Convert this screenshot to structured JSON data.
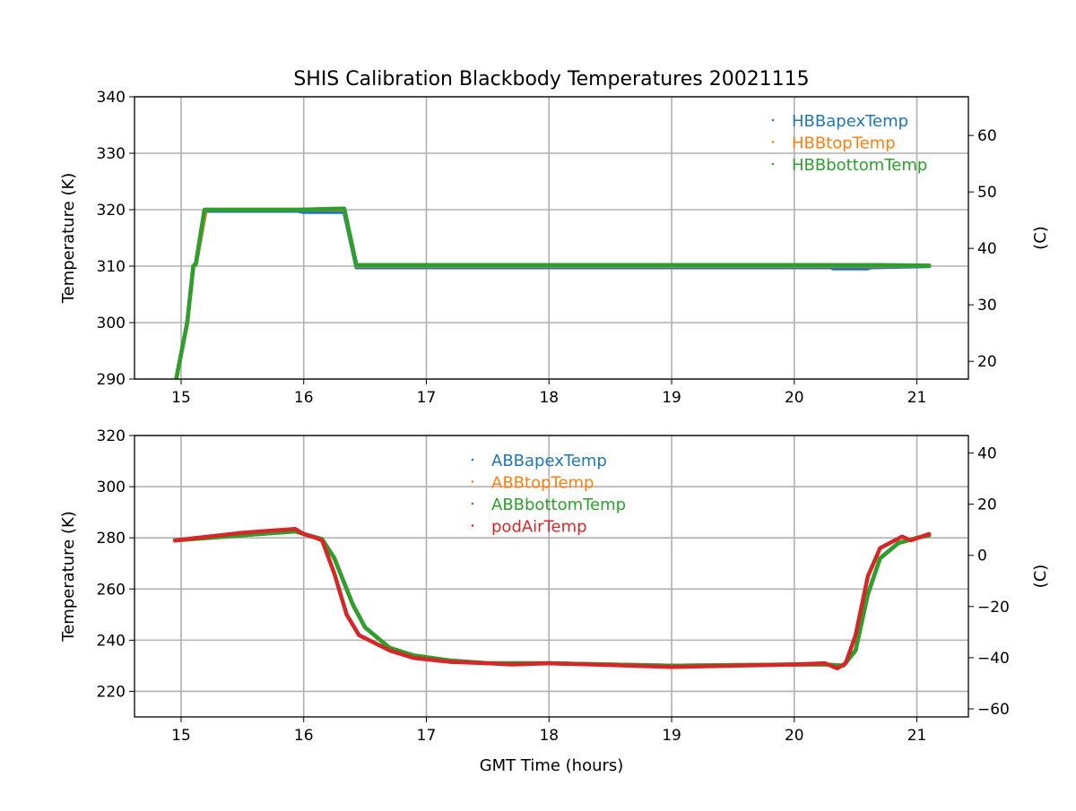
{
  "chart_data": [
    {
      "type": "line",
      "title": "SHIS Calibration Blackbody Temperatures 20021115",
      "xlabel": "",
      "ylabel": "Temperature (K)",
      "ylabel_right": "(C)",
      "xlim": [
        14.62,
        21.42
      ],
      "ylim": [
        290,
        340
      ],
      "xticks": [
        "15",
        "16",
        "17",
        "18",
        "19",
        "20",
        "21"
      ],
      "yticks": [
        "290",
        "300",
        "310",
        "320",
        "330",
        "340"
      ],
      "yticks_right": [
        "20",
        "30",
        "40",
        "50",
        "60"
      ],
      "grid": true,
      "legend": "top-right",
      "series": [
        {
          "name": "HBBapexTemp",
          "color": "#1f77b4",
          "points": [
            [
              14.96,
              290
            ],
            [
              15.05,
              300
            ],
            [
              15.1,
              310
            ],
            [
              15.12,
              310.3
            ],
            [
              15.2,
              319.8
            ],
            [
              15.95,
              319.8
            ],
            [
              16.0,
              319.6
            ],
            [
              16.33,
              319.6
            ],
            [
              16.43,
              309.8
            ],
            [
              20.3,
              309.8
            ],
            [
              20.32,
              309.6
            ],
            [
              20.6,
              309.6
            ],
            [
              20.62,
              309.8
            ],
            [
              21.1,
              310
            ]
          ]
        },
        {
          "name": "HBBtopTemp",
          "color": "#ff7f0e",
          "points": [
            [
              14.96,
              290
            ],
            [
              15.05,
              300
            ],
            [
              15.1,
              310
            ],
            [
              15.12,
              310.4
            ],
            [
              15.2,
              320
            ],
            [
              15.95,
              320
            ],
            [
              16.33,
              320.1
            ],
            [
              16.43,
              310.1
            ],
            [
              21.1,
              310.1
            ]
          ]
        },
        {
          "name": "HBBbottomTemp",
          "color": "#2ca02c",
          "points": [
            [
              14.96,
              290
            ],
            [
              15.05,
              300
            ],
            [
              15.1,
              310
            ],
            [
              15.12,
              310.5
            ],
            [
              15.19,
              320
            ],
            [
              15.95,
              320
            ],
            [
              16.33,
              320.2
            ],
            [
              16.43,
              310.2
            ],
            [
              20.7,
              310.2
            ],
            [
              21.1,
              310.1
            ]
          ]
        }
      ]
    },
    {
      "type": "line",
      "title": "",
      "xlabel": "GMT Time (hours)",
      "ylabel": "Temperature (K)",
      "ylabel_right": "(C)",
      "xlim": [
        14.62,
        21.42
      ],
      "ylim": [
        210,
        320
      ],
      "xticks": [
        "15",
        "16",
        "17",
        "18",
        "19",
        "20",
        "21"
      ],
      "yticks": [
        "220",
        "240",
        "260",
        "280",
        "300",
        "320"
      ],
      "yticks_right": [
        "−60",
        "−40",
        "−20",
        "0",
        "20",
        "40"
      ],
      "grid": true,
      "legend": "top-center",
      "series": [
        {
          "name": "ABBapexTemp",
          "color": "#1f77b4",
          "points": [
            [
              14.95,
              279
            ],
            [
              15.5,
              281
            ],
            [
              15.93,
              282.5
            ],
            [
              16.0,
              281.5
            ],
            [
              16.15,
              279.5
            ],
            [
              16.25,
              272
            ],
            [
              16.4,
              254
            ],
            [
              16.5,
              245
            ],
            [
              16.7,
              237
            ],
            [
              16.9,
              234
            ],
            [
              17.2,
              232
            ],
            [
              17.5,
              231
            ],
            [
              18,
              231
            ],
            [
              19,
              230
            ],
            [
              20,
              230.5
            ],
            [
              20.25,
              230.5
            ],
            [
              20.4,
              230
            ],
            [
              20.5,
              236
            ],
            [
              20.6,
              258
            ],
            [
              20.7,
              272
            ],
            [
              20.85,
              278
            ],
            [
              21,
              280
            ],
            [
              21.1,
              281
            ]
          ]
        },
        {
          "name": "ABBtopTemp",
          "color": "#ff7f0e",
          "points": [
            [
              14.95,
              279
            ],
            [
              15.5,
              281
            ],
            [
              15.93,
              282.5
            ],
            [
              16.0,
              281.5
            ],
            [
              16.15,
              279.5
            ],
            [
              16.25,
              272
            ],
            [
              16.4,
              254
            ],
            [
              16.5,
              245
            ],
            [
              16.7,
              237
            ],
            [
              16.9,
              234
            ],
            [
              17.2,
              232
            ],
            [
              17.5,
              231
            ],
            [
              18,
              231
            ],
            [
              19,
              230
            ],
            [
              20,
              230.5
            ],
            [
              20.25,
              230.5
            ],
            [
              20.4,
              230
            ],
            [
              20.5,
              236
            ],
            [
              20.6,
              258
            ],
            [
              20.7,
              272
            ],
            [
              20.85,
              278
            ],
            [
              21,
              280
            ],
            [
              21.1,
              281
            ]
          ]
        },
        {
          "name": "ABBbottomTemp",
          "color": "#2ca02c",
          "points": [
            [
              14.95,
              279
            ],
            [
              15.5,
              281
            ],
            [
              15.93,
              282.5
            ],
            [
              16.0,
              281.5
            ],
            [
              16.15,
              279.5
            ],
            [
              16.25,
              272
            ],
            [
              16.4,
              254
            ],
            [
              16.5,
              245
            ],
            [
              16.7,
              237
            ],
            [
              16.9,
              234
            ],
            [
              17.2,
              232
            ],
            [
              17.5,
              231
            ],
            [
              18,
              231
            ],
            [
              19,
              230
            ],
            [
              20,
              230.5
            ],
            [
              20.25,
              230.5
            ],
            [
              20.4,
              230
            ],
            [
              20.5,
              236
            ],
            [
              20.6,
              258
            ],
            [
              20.7,
              272
            ],
            [
              20.85,
              278
            ],
            [
              21,
              280
            ],
            [
              21.1,
              281
            ]
          ]
        },
        {
          "name": "podAirTemp",
          "color": "#d62728",
          "points": [
            [
              14.95,
              279
            ],
            [
              15.5,
              282
            ],
            [
              15.93,
              283.5
            ],
            [
              16.0,
              281.5
            ],
            [
              16.1,
              280
            ],
            [
              16.15,
              279
            ],
            [
              16.25,
              266
            ],
            [
              16.35,
              250
            ],
            [
              16.45,
              242
            ],
            [
              16.7,
              236
            ],
            [
              16.9,
              233
            ],
            [
              17.2,
              231.5
            ],
            [
              17.5,
              231
            ],
            [
              17.7,
              230.5
            ],
            [
              18,
              231
            ],
            [
              19,
              229.5
            ],
            [
              20,
              230.5
            ],
            [
              20.25,
              231
            ],
            [
              20.35,
              229
            ],
            [
              20.42,
              231
            ],
            [
              20.5,
              242
            ],
            [
              20.6,
              265
            ],
            [
              20.7,
              276
            ],
            [
              20.88,
              280.5
            ],
            [
              20.95,
              279
            ],
            [
              21.1,
              281.5
            ]
          ]
        }
      ]
    }
  ]
}
